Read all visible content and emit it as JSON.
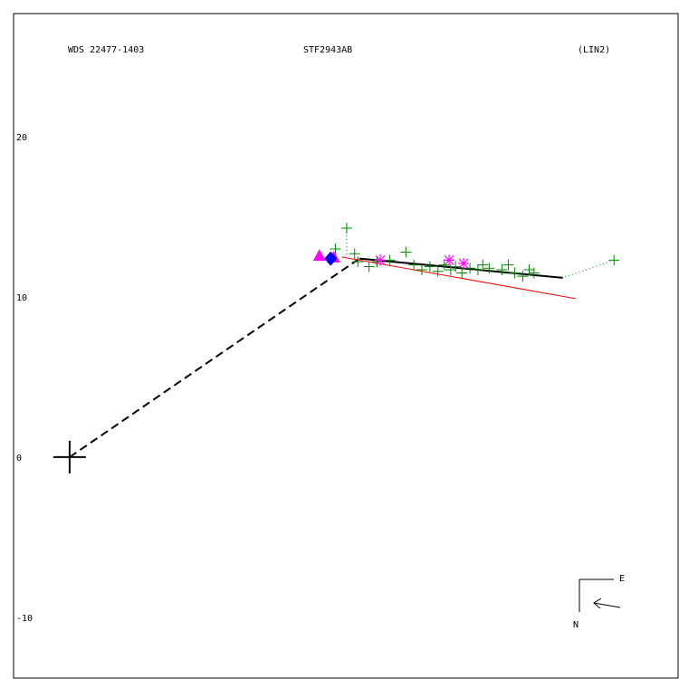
{
  "header": {
    "wds_id": "WDS 22477-1403",
    "pair_name": "STF2943AB",
    "fit_label": "(LIN2)"
  },
  "compass": {
    "north_label": "N",
    "east_label": "E"
  },
  "colors": {
    "frame": "#000000",
    "fit_line": "#000000",
    "connector": "#000000",
    "residual_line": "#ff0000",
    "micrometer_marks": "#008800",
    "speckle_marks": "#ff00ff",
    "triangle_marks": "#ff00ff",
    "diamond_marks": "#0000ff"
  },
  "chart_data": {
    "type": "scatter",
    "title": "",
    "xlabel": "",
    "ylabel": "",
    "ylim": [
      -13.8,
      27.7
    ],
    "yticks": [
      {
        "value": 20,
        "label": "20"
      },
      {
        "value": 10,
        "label": "10"
      },
      {
        "value": 0,
        "label": "0"
      },
      {
        "value": -10,
        "label": "-10"
      }
    ],
    "xlim": [
      -3.5,
      38.0
    ],
    "primary": {
      "x": 0,
      "y": 0
    },
    "fit_line": {
      "start": [
        18.1,
        12.4
      ],
      "end": [
        30.8,
        11.2
      ]
    },
    "connector": {
      "from": [
        0,
        0
      ],
      "to": [
        18.1,
        12.4
      ]
    },
    "residual_line": {
      "start": [
        17.0,
        12.5
      ],
      "end": [
        31.6,
        9.9
      ]
    },
    "series": [
      {
        "marker": "plus",
        "points": [
          [
            17.3,
            14.3
          ],
          [
            16.6,
            13.0
          ],
          [
            17.8,
            12.7
          ],
          [
            18.0,
            12.2
          ],
          [
            18.7,
            11.9
          ],
          [
            19.2,
            12.2
          ],
          [
            20.0,
            12.3
          ],
          [
            21.0,
            12.8
          ],
          [
            21.5,
            12.0
          ],
          [
            22.0,
            11.7
          ],
          [
            22.5,
            11.9
          ],
          [
            23.0,
            11.6
          ],
          [
            23.4,
            12.0
          ],
          [
            23.8,
            11.7
          ],
          [
            24.1,
            11.9
          ],
          [
            24.5,
            11.5
          ],
          [
            25.0,
            11.8
          ],
          [
            25.5,
            11.7
          ],
          [
            25.8,
            12.0
          ],
          [
            26.2,
            11.8
          ],
          [
            27.0,
            11.7
          ],
          [
            27.4,
            12.0
          ],
          [
            27.8,
            11.5
          ],
          [
            28.3,
            11.3
          ],
          [
            28.7,
            11.7
          ],
          [
            29.0,
            11.5
          ],
          [
            34.0,
            12.3
          ]
        ]
      },
      {
        "marker": "asterisk",
        "points": [
          [
            19.4,
            12.3
          ],
          [
            23.7,
            12.3
          ],
          [
            24.6,
            12.1
          ]
        ]
      },
      {
        "marker": "triangle",
        "points": [
          [
            15.6,
            12.6
          ],
          [
            16.5,
            12.5
          ]
        ]
      },
      {
        "marker": "diamond",
        "points": [
          [
            16.3,
            12.4
          ]
        ]
      }
    ],
    "residuals": [
      {
        "from": [
          17.3,
          14.3
        ],
        "to": [
          17.3,
          12.5
        ]
      },
      {
        "from": [
          34.0,
          12.3
        ],
        "to": [
          30.8,
          11.2
        ]
      }
    ]
  }
}
